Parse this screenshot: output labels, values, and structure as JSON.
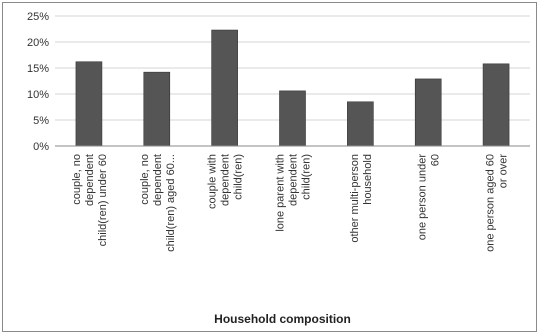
{
  "chart_data": {
    "type": "bar",
    "title": "",
    "xlabel": "Household composition",
    "ylabel": "",
    "ylim": [
      0,
      25
    ],
    "yticks": [
      "0%",
      "5%",
      "10%",
      "15%",
      "20%",
      "25%"
    ],
    "grid": true,
    "legend": "none",
    "bar_color": "#555555",
    "categories": [
      [
        "couple, no",
        "dependent",
        "child(ren) under 60"
      ],
      [
        "couple, no",
        "dependent",
        "child(ren) aged 60..."
      ],
      [
        "couple with",
        "dependent",
        "child(ren)"
      ],
      [
        "lone parent with",
        "dependent",
        "child(ren)"
      ],
      [
        "other multi-person",
        "household"
      ],
      [
        "one person under",
        "60"
      ],
      [
        "one person aged 60",
        "or over"
      ]
    ],
    "values": [
      16.2,
      14.2,
      22.3,
      10.6,
      8.5,
      12.9,
      15.8
    ]
  }
}
